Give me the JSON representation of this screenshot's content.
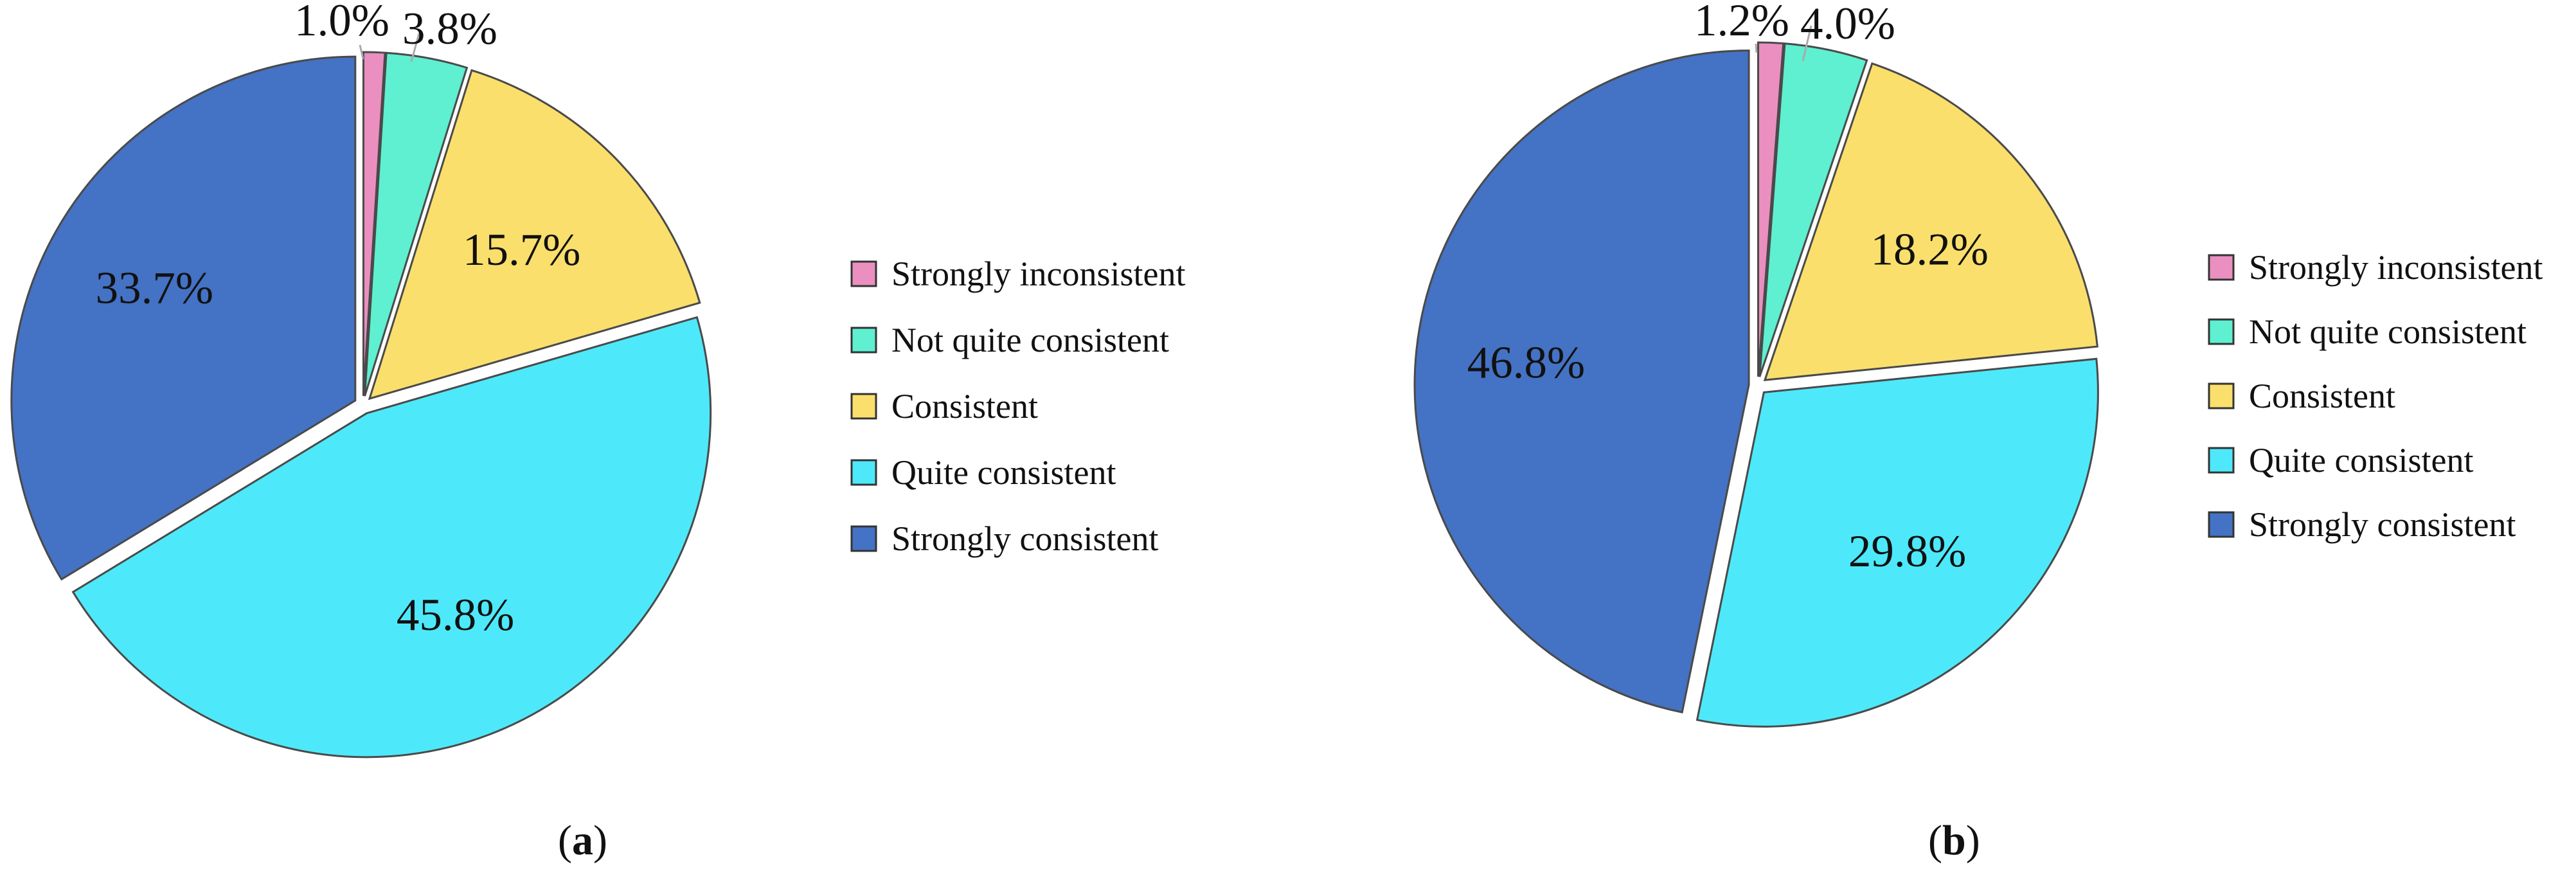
{
  "chart_data": [
    {
      "type": "pie",
      "panel_label": "a",
      "categories": [
        "Strongly inconsistent",
        "Not quite consistent",
        "Consistent",
        "Quite consistent",
        "Strongly consistent"
      ],
      "values": [
        1.0,
        3.8,
        15.7,
        45.8,
        33.7
      ],
      "labels": [
        "1.0%",
        "3.8%",
        "15.7%",
        "45.8%",
        "33.7%"
      ],
      "colors": [
        "#EA8FC0",
        "#5EF0D0",
        "#FBDF6C",
        "#4DE9FA",
        "#4472C4"
      ],
      "legend_position": "right"
    },
    {
      "type": "pie",
      "panel_label": "b",
      "categories": [
        "Strongly inconsistent",
        "Not quite consistent",
        "Consistent",
        "Quite consistent",
        "Strongly consistent"
      ],
      "values": [
        1.2,
        4.0,
        18.2,
        29.8,
        46.8
      ],
      "labels": [
        "1.2%",
        "4.0%",
        "18.2%",
        "29.8%",
        "46.8%"
      ],
      "colors": [
        "#EA8FC0",
        "#5EF0D0",
        "#FBDF6C",
        "#4DE9FA",
        "#4472C4"
      ],
      "legend_position": "right"
    }
  ],
  "captions": {
    "a": "a",
    "b": "b"
  }
}
